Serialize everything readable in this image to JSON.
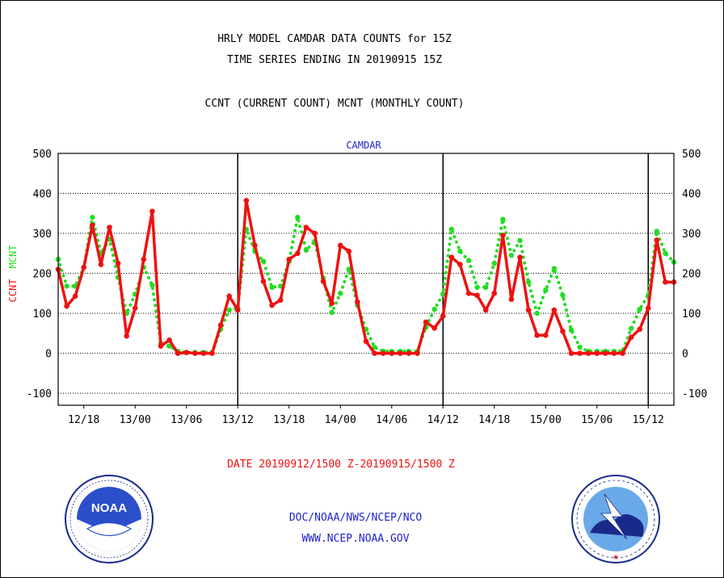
{
  "header": {
    "title_line1": "HRLY MODEL CAMDAR DATA COUNTS for 15Z",
    "title_line2": "TIME SERIES ENDING IN 20190915 15Z",
    "subtitle": "CCNT (CURRENT COUNT) MCNT (MONTHLY COUNT)"
  },
  "footer": {
    "date_range": "DATE 20190912/1500 Z-20190915/1500 Z",
    "org": "DOC/NOAA/NWS/NCEP/NCO",
    "url": "WWW.NCEP.NOAA.GOV"
  },
  "logos": {
    "noaa_text": "NOAA",
    "nws_text": "NATIONAL WEATHER SERVICE"
  },
  "colors": {
    "ccnt": "#ee1111",
    "mcnt": "#22dd22",
    "axis": "#000000",
    "panel_title": "#2222cc",
    "date_text": "#ee1111",
    "footer_text": "#2222cc"
  },
  "chart_data": {
    "type": "line",
    "panel_title": "CAMDAR",
    "ylabel_ccnt": "CCNT",
    "ylabel_mcnt": "MCNT",
    "ylim": [
      -130,
      500
    ],
    "yticks": [
      -100,
      0,
      100,
      200,
      300,
      400,
      500
    ],
    "grid": "dotted-horizontal",
    "x_start_hour": 0,
    "x_end_hour": 72,
    "xtick_labels": [
      {
        "hour": 3,
        "label": "12/18"
      },
      {
        "hour": 9,
        "label": "13/00"
      },
      {
        "hour": 15,
        "label": "13/06"
      },
      {
        "hour": 21,
        "label": "13/12"
      },
      {
        "hour": 27,
        "label": "13/18"
      },
      {
        "hour": 33,
        "label": "14/00"
      },
      {
        "hour": 39,
        "label": "14/06"
      },
      {
        "hour": 45,
        "label": "14/12"
      },
      {
        "hour": 51,
        "label": "14/18"
      },
      {
        "hour": 57,
        "label": "15/00"
      },
      {
        "hour": 63,
        "label": "15/06"
      },
      {
        "hour": 69,
        "label": "15/12"
      }
    ],
    "day_boundaries": [
      21,
      45,
      69
    ],
    "series": [
      {
        "name": "CCNT",
        "color": "#ee1111",
        "style": "solid",
        "values": [
          210,
          118,
          143,
          215,
          320,
          222,
          315,
          225,
          43,
          113,
          235,
          355,
          18,
          33,
          0,
          2,
          0,
          0,
          0,
          70,
          143,
          108,
          382,
          270,
          180,
          120,
          133,
          235,
          250,
          315,
          300,
          180,
          125,
          270,
          255,
          128,
          30,
          0,
          0,
          0,
          0,
          0,
          0,
          78,
          63,
          93,
          240,
          222,
          150,
          145,
          108,
          150,
          295,
          135,
          240,
          108,
          45,
          45,
          108,
          55,
          0,
          0,
          0,
          0,
          0,
          0,
          0,
          40,
          60,
          113,
          283,
          178,
          178
        ]
      },
      {
        "name": "MCNT",
        "color": "#22dd22",
        "style": "dotted",
        "values": [
          235,
          168,
          168,
          215,
          340,
          250,
          285,
          190,
          100,
          148,
          215,
          170,
          25,
          18,
          5,
          2,
          2,
          2,
          2,
          60,
          108,
          113,
          310,
          255,
          230,
          165,
          168,
          230,
          340,
          258,
          280,
          188,
          102,
          150,
          210,
          120,
          60,
          15,
          5,
          5,
          5,
          5,
          5,
          65,
          110,
          148,
          310,
          255,
          232,
          165,
          165,
          225,
          335,
          245,
          282,
          178,
          100,
          158,
          212,
          145,
          58,
          15,
          5,
          5,
          5,
          5,
          5,
          62,
          110,
          145,
          305,
          250,
          228
        ]
      }
    ]
  }
}
